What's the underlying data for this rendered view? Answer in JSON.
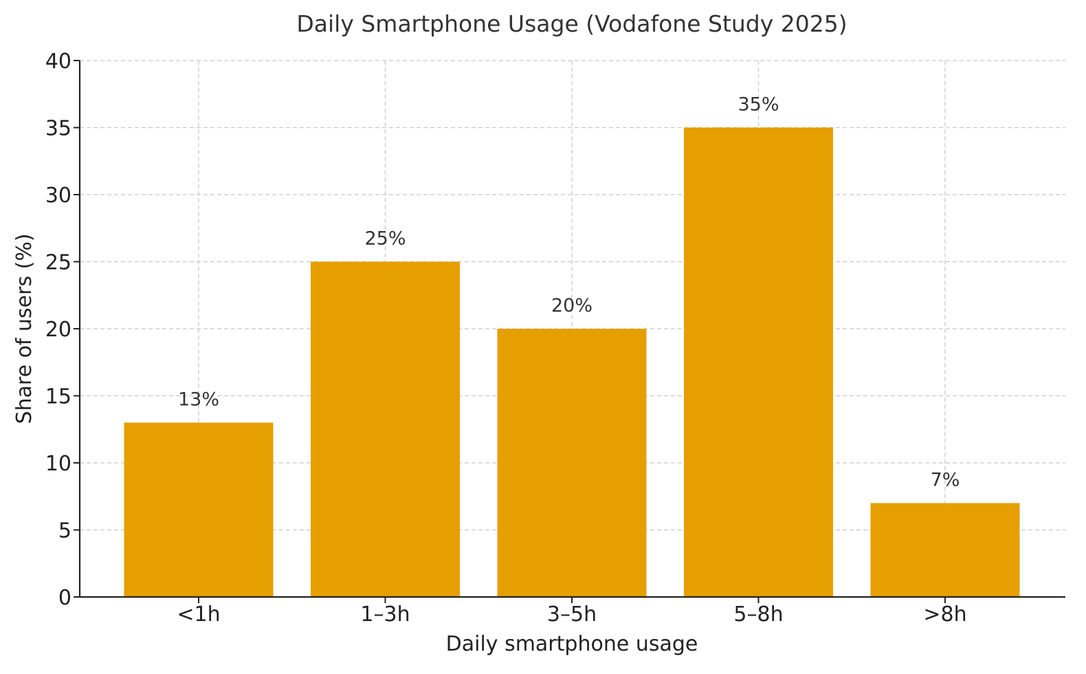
{
  "chart_data": {
    "type": "bar",
    "title": "Daily Smartphone Usage (Vodafone Study 2025)",
    "xlabel": "Daily smartphone usage",
    "ylabel": "Share of users (%)",
    "categories": [
      "<1h",
      "1–3h",
      "3–5h",
      "5–8h",
      ">8h"
    ],
    "values": [
      13,
      25,
      20,
      35,
      7
    ],
    "data_labels": [
      "13%",
      "25%",
      "20%",
      "35%",
      "7%"
    ],
    "ylim": [
      0,
      40
    ],
    "yticks": [
      0,
      5,
      10,
      15,
      20,
      25,
      30,
      35,
      40
    ],
    "bar_color": "#E69F00",
    "grid": true,
    "legend": "none"
  }
}
